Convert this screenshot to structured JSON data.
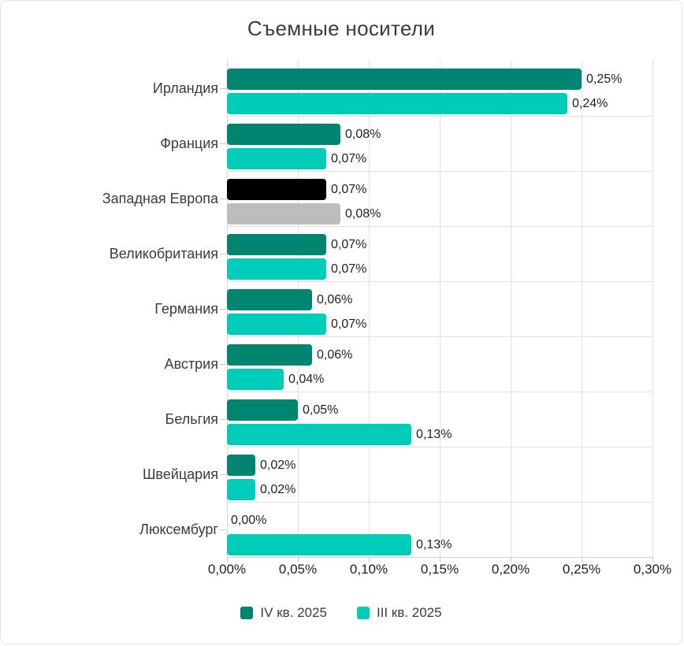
{
  "chart_data": {
    "type": "bar",
    "orientation": "horizontal",
    "title": "Съемные носители",
    "categories": [
      "Ирландия",
      "Франция",
      "Западная Европа",
      "Великобритания",
      "Германия",
      "Австрия",
      "Бельгия",
      "Швейцария",
      "Люксембург"
    ],
    "series": [
      {
        "name": "IV кв. 2025",
        "color": "#008570",
        "values": [
          0.25,
          0.08,
          0.07,
          0.07,
          0.06,
          0.06,
          0.05,
          0.02,
          0.0
        ]
      },
      {
        "name": "III кв. 2025",
        "color": "#00CDB9",
        "values": [
          0.24,
          0.07,
          0.08,
          0.07,
          0.07,
          0.04,
          0.13,
          0.02,
          0.13
        ]
      }
    ],
    "data_labels": [
      [
        "0,25%",
        "0,08%",
        "0,07%",
        "0,07%",
        "0,06%",
        "0,06%",
        "0,05%",
        "0,02%",
        "0,00%"
      ],
      [
        "0,24%",
        "0,07%",
        "0,08%",
        "0,07%",
        "0,07%",
        "0,04%",
        "0,13%",
        "0,02%",
        "0,13%"
      ]
    ],
    "highlight": {
      "category": "Западная Европа",
      "index": 2,
      "colors": [
        "#000000",
        "#BDBDBD"
      ]
    },
    "x_ticks": [
      "0,00%",
      "0,05%",
      "0,10%",
      "0,15%",
      "0,20%",
      "0,25%",
      "0,30%"
    ],
    "xlim": [
      0,
      0.3
    ],
    "grid": true,
    "legend_position": "bottom",
    "legend": [
      {
        "label": "IV кв. 2025",
        "color": "#008570"
      },
      {
        "label": "III кв. 2025",
        "color": "#00CDB9"
      }
    ]
  }
}
